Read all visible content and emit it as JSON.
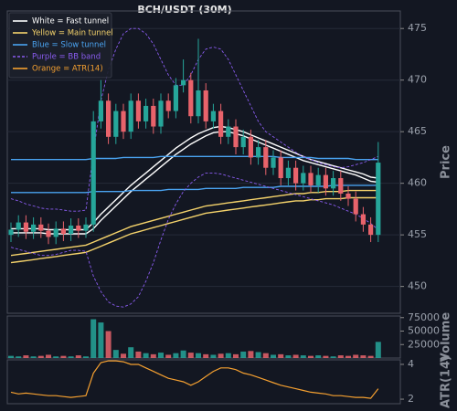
{
  "chart_data": [
    {
      "type": "candlestick",
      "title": "BCH/USDT (30M)",
      "ylabel": "Price",
      "up_color": "#26a69a",
      "down_color": "#e8636b",
      "grid": true,
      "legend": "upper left",
      "ylim": [
        447.4,
        476.7
      ],
      "yticks": [
        450,
        455,
        460,
        465,
        470,
        475
      ],
      "open": [
        455.0,
        455.5,
        456.2,
        455.3,
        456.0,
        455.4,
        454.8,
        455.6,
        455.1,
        455.9,
        455.4,
        456.0,
        466.0,
        468.0,
        464.5,
        467.0,
        465.0,
        468.0,
        466.0,
        467.5,
        465.5,
        468.0,
        467.0,
        469.5,
        470.0,
        466.5,
        469.0,
        466.0,
        467.0,
        464.5,
        465.5,
        463.5,
        464.5,
        462.5,
        463.5,
        461.5,
        462.5,
        460.5,
        461.5,
        460.0,
        461.0,
        459.8,
        460.8,
        459.5,
        460.5,
        459.0,
        458.5,
        457.0,
        456.0,
        455.0
      ],
      "high": [
        456.2,
        456.9,
        456.9,
        456.7,
        456.7,
        456.1,
        456.3,
        456.3,
        456.6,
        456.6,
        456.7,
        467.0,
        470.0,
        468.7,
        467.7,
        467.7,
        468.7,
        468.7,
        468.2,
        468.2,
        468.7,
        468.7,
        470.2,
        472.0,
        470.7,
        474.0,
        469.7,
        467.7,
        467.7,
        466.2,
        466.2,
        465.2,
        465.2,
        464.2,
        464.2,
        463.2,
        463.2,
        462.2,
        462.2,
        461.7,
        461.7,
        461.5,
        461.5,
        461.2,
        461.2,
        459.7,
        459.2,
        457.7,
        456.7,
        464.0
      ],
      "low": [
        454.3,
        454.8,
        454.6,
        454.6,
        454.7,
        454.1,
        454.1,
        454.4,
        454.4,
        454.7,
        454.7,
        455.3,
        465.3,
        463.8,
        463.8,
        464.3,
        464.3,
        465.3,
        465.3,
        464.8,
        464.8,
        466.3,
        466.3,
        468.8,
        465.8,
        465.8,
        465.3,
        465.3,
        463.8,
        463.8,
        462.8,
        462.8,
        461.8,
        461.8,
        460.8,
        460.8,
        459.8,
        459.8,
        459.3,
        459.3,
        459.1,
        459.1,
        458.8,
        458.8,
        458.3,
        457.8,
        456.3,
        455.3,
        454.3,
        454.3
      ],
      "close": [
        455.5,
        456.2,
        455.3,
        456.0,
        455.4,
        454.8,
        455.6,
        455.1,
        455.9,
        455.4,
        456.0,
        466.0,
        468.0,
        464.5,
        467.0,
        465.0,
        468.0,
        466.0,
        467.5,
        465.5,
        468.0,
        467.0,
        469.5,
        470.0,
        466.5,
        469.0,
        466.0,
        467.0,
        464.5,
        465.5,
        463.5,
        464.5,
        462.5,
        463.5,
        461.5,
        462.5,
        460.5,
        461.5,
        460.0,
        461.0,
        459.8,
        460.8,
        459.5,
        460.5,
        459.0,
        458.5,
        457.0,
        456.0,
        455.0,
        462.0
      ],
      "series": [
        {
          "name": "White = Fast tunnel",
          "color": "#ffffff",
          "dash": false,
          "lines": [
            [
              455.6,
              455.6,
              455.6,
              455.6,
              455.6,
              455.5,
              455.5,
              455.5,
              455.5,
              455.5,
              455.5,
              456.2,
              457.0,
              457.7,
              458.4,
              459.1,
              459.8,
              460.4,
              461.0,
              461.6,
              462.2,
              462.8,
              463.4,
              463.9,
              464.4,
              464.8,
              465.1,
              465.4,
              465.5,
              465.4,
              465.2,
              465.0,
              464.7,
              464.4,
              464.1,
              463.8,
              463.5,
              463.2,
              462.9,
              462.6,
              462.3,
              462.1,
              461.9,
              461.7,
              461.5,
              461.3,
              461.1,
              460.9,
              460.6,
              460.5
            ],
            [
              455.2,
              455.2,
              455.2,
              455.2,
              455.2,
              455.1,
              455.1,
              455.1,
              455.1,
              455.1,
              455.1,
              455.6,
              456.4,
              457.1,
              457.8,
              458.5,
              459.2,
              459.8,
              460.4,
              461.0,
              461.6,
              462.2,
              462.8,
              463.3,
              463.8,
              464.2,
              464.6,
              464.9,
              465.0,
              465.0,
              464.8,
              464.6,
              464.3,
              464.0,
              463.7,
              463.4,
              463.1,
              462.8,
              462.5,
              462.2,
              462.0,
              461.8,
              461.6,
              461.4,
              461.2,
              461.0,
              460.8,
              460.5,
              460.2,
              460.1
            ]
          ]
        },
        {
          "name": "Yellow = Main tunnel",
          "color": "#f5d36b",
          "dash": false,
          "lines": [
            [
              453.0,
              453.1,
              453.2,
              453.3,
              453.4,
              453.5,
              453.6,
              453.7,
              453.8,
              453.9,
              454.0,
              454.3,
              454.6,
              454.9,
              455.2,
              455.5,
              455.8,
              456.0,
              456.2,
              456.4,
              456.6,
              456.8,
              457.0,
              457.2,
              457.4,
              457.6,
              457.8,
              457.9,
              458.0,
              458.1,
              458.2,
              458.3,
              458.4,
              458.5,
              458.6,
              458.7,
              458.8,
              458.9,
              459.0,
              459.0,
              459.1,
              459.1,
              459.2,
              459.2,
              459.2,
              459.3,
              459.3,
              459.3,
              459.3,
              459.3
            ],
            [
              452.3,
              452.4,
              452.5,
              452.6,
              452.7,
              452.8,
              452.9,
              453.0,
              453.1,
              453.2,
              453.3,
              453.6,
              453.9,
              454.2,
              454.5,
              454.8,
              455.1,
              455.3,
              455.5,
              455.7,
              455.9,
              456.1,
              456.3,
              456.5,
              456.7,
              456.9,
              457.1,
              457.2,
              457.3,
              457.4,
              457.5,
              457.6,
              457.7,
              457.8,
              457.9,
              458.0,
              458.1,
              458.2,
              458.3,
              458.3,
              458.4,
              458.4,
              458.5,
              458.5,
              458.5,
              458.6,
              458.6,
              458.6,
              458.6,
              458.6
            ]
          ]
        },
        {
          "name": "Blue = Slow tunnel",
          "color": "#4aa3f0",
          "dash": false,
          "lines": [
            [
              462.3,
              462.3,
              462.3,
              462.3,
              462.3,
              462.3,
              462.3,
              462.3,
              462.3,
              462.3,
              462.3,
              462.4,
              462.4,
              462.4,
              462.4,
              462.5,
              462.5,
              462.5,
              462.5,
              462.5,
              462.6,
              462.6,
              462.6,
              462.6,
              462.6,
              462.6,
              462.6,
              462.6,
              462.6,
              462.6,
              462.6,
              462.6,
              462.6,
              462.6,
              462.6,
              462.6,
              462.5,
              462.5,
              462.5,
              462.5,
              462.5,
              462.4,
              462.4,
              462.4,
              462.4,
              462.4,
              462.3,
              462.3,
              462.3,
              462.3
            ],
            [
              459.1,
              459.1,
              459.1,
              459.1,
              459.1,
              459.1,
              459.1,
              459.1,
              459.1,
              459.1,
              459.1,
              459.2,
              459.2,
              459.2,
              459.2,
              459.2,
              459.3,
              459.3,
              459.3,
              459.3,
              459.3,
              459.4,
              459.4,
              459.4,
              459.4,
              459.4,
              459.5,
              459.5,
              459.5,
              459.5,
              459.5,
              459.6,
              459.6,
              459.6,
              459.6,
              459.6,
              459.7,
              459.7,
              459.7,
              459.7,
              459.7,
              459.7,
              459.7,
              459.8,
              459.8,
              459.8,
              459.8,
              459.8,
              459.8,
              459.8
            ]
          ]
        },
        {
          "name": "Purple = BB band",
          "color": "#8a5cf0",
          "dash": true,
          "lines": [
            [
              458.5,
              458.3,
              458.0,
              457.8,
              457.6,
              457.5,
              457.5,
              457.4,
              457.3,
              457.3,
              457.4,
              463.0,
              468.0,
              471.0,
              473.0,
              474.5,
              475.0,
              475.0,
              474.5,
              473.5,
              472.0,
              470.5,
              469.5,
              469.5,
              470.5,
              472.0,
              473.0,
              473.2,
              473.0,
              472.0,
              470.5,
              469.0,
              467.5,
              466.0,
              465.0,
              464.5,
              464.0,
              463.5,
              463.0,
              462.6,
              462.3,
              462.0,
              461.8,
              461.6,
              461.5,
              461.6,
              461.8,
              462.0,
              462.3,
              462.6
            ],
            [
              453.8,
              453.6,
              453.4,
              453.2,
              453.0,
              453.0,
              453.1,
              453.3,
              453.5,
              453.5,
              453.4,
              451.0,
              449.5,
              448.5,
              448.1,
              448.0,
              448.3,
              449.0,
              450.5,
              452.3,
              454.5,
              456.5,
              458.0,
              459.2,
              460.0,
              460.6,
              461.0,
              461.0,
              460.9,
              460.7,
              460.5,
              460.3,
              460.1,
              459.9,
              459.7,
              459.5,
              459.3,
              459.1,
              458.9,
              458.7,
              458.5,
              458.3,
              458.1,
              457.9,
              457.6,
              457.3,
              457.0,
              456.6,
              456.1,
              455.5
            ]
          ]
        }
      ]
    },
    {
      "type": "bar",
      "ylabel": "Volume",
      "ylim": [
        0,
        78000
      ],
      "yticks": [
        25000,
        50000,
        75000
      ],
      "values": [
        4000,
        3000,
        5000,
        3000,
        4000,
        6000,
        3000,
        4000,
        3000,
        5000,
        3000,
        72000,
        66000,
        50000,
        15000,
        8000,
        20000,
        12000,
        9000,
        7000,
        10000,
        6000,
        9000,
        14000,
        10000,
        9000,
        7000,
        6000,
        8000,
        9000,
        7000,
        12000,
        13000,
        11000,
        9000,
        6000,
        7000,
        5000,
        6000,
        5000,
        4000,
        5000,
        4000,
        3000,
        5000,
        4000,
        6000,
        5000,
        4000,
        30000
      ]
    },
    {
      "type": "line",
      "ylabel": "ATR(14)",
      "ylim": [
        1.74,
        4.26
      ],
      "yticks": [
        2,
        4
      ],
      "series": [
        {
          "name": "Orange = ATR(14)",
          "color": "#f5a030",
          "values": [
            2.4,
            2.3,
            2.35,
            2.3,
            2.25,
            2.2,
            2.2,
            2.15,
            2.1,
            2.15,
            2.2,
            3.5,
            4.1,
            4.2,
            4.2,
            4.15,
            4.0,
            4.0,
            3.8,
            3.6,
            3.4,
            3.2,
            3.1,
            3.0,
            2.8,
            3.0,
            3.3,
            3.6,
            3.8,
            3.8,
            3.7,
            3.5,
            3.4,
            3.25,
            3.1,
            2.95,
            2.8,
            2.7,
            2.6,
            2.5,
            2.4,
            2.35,
            2.3,
            2.2,
            2.2,
            2.15,
            2.1,
            2.1,
            2.05,
            2.6
          ]
        }
      ]
    }
  ]
}
